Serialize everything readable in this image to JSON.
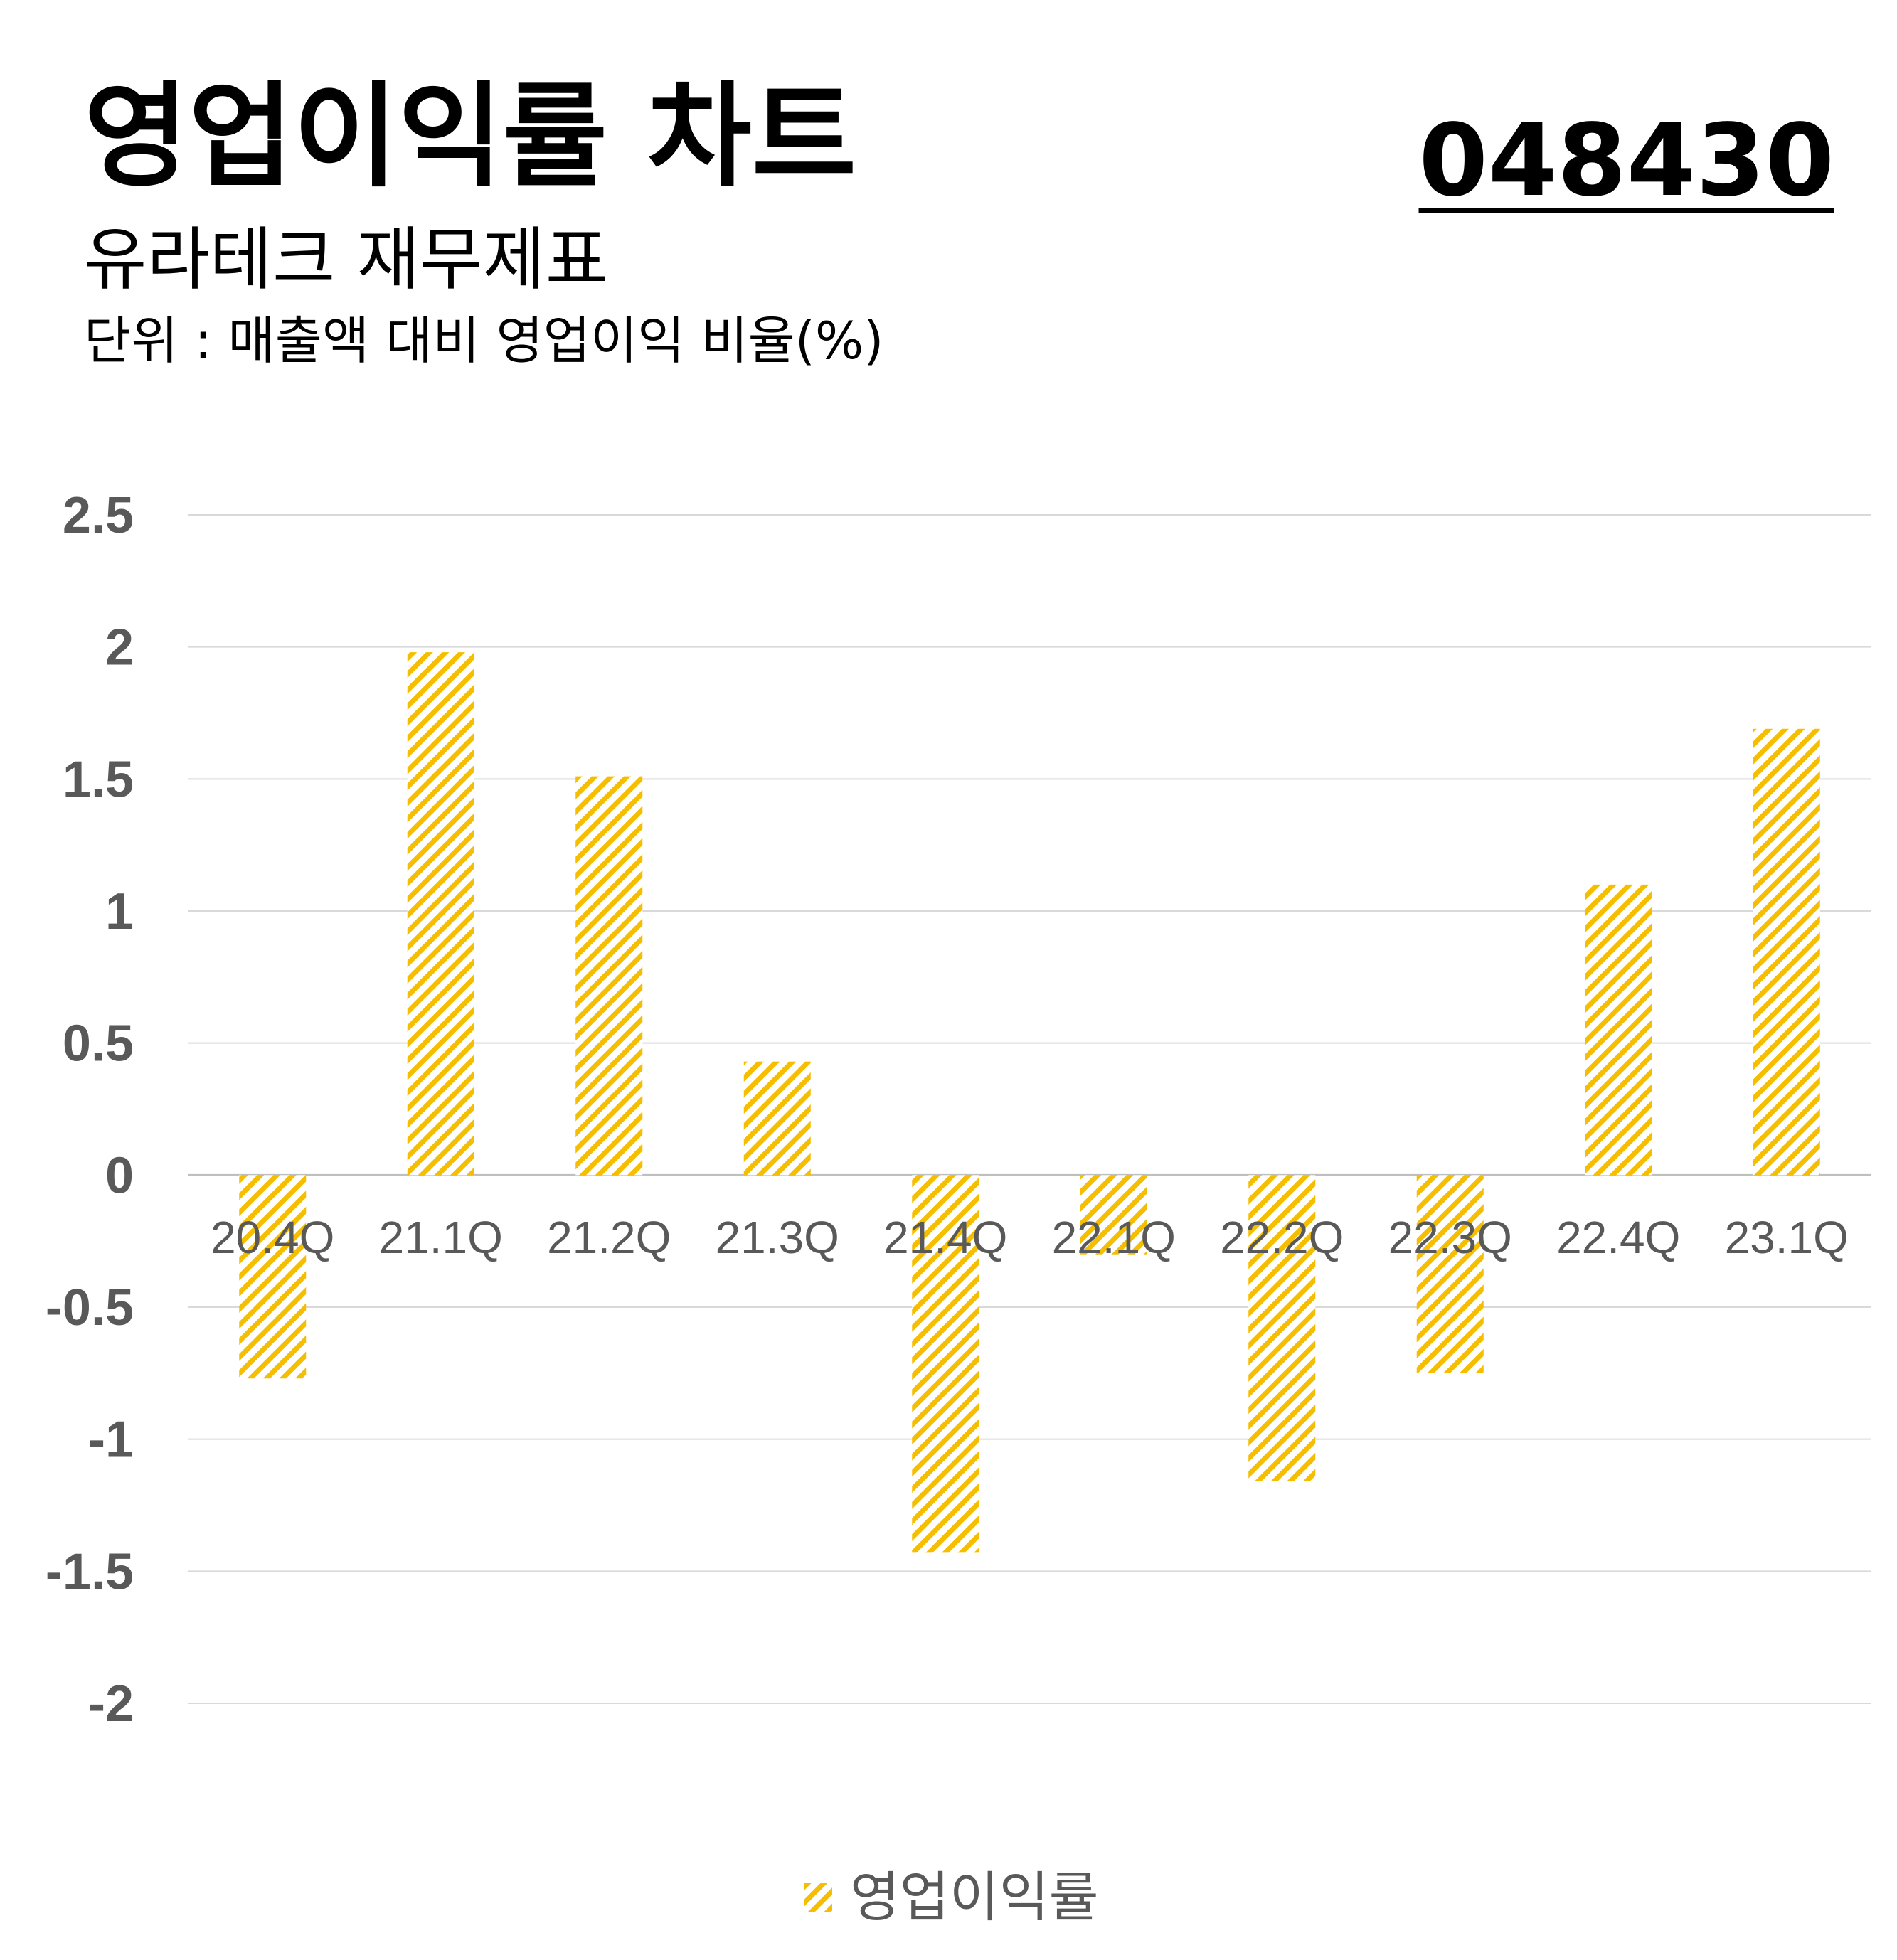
{
  "header": {
    "title": "영업이익률 차트",
    "code": "048430",
    "subtitle": "유라테크 재무제표",
    "unit": "단위 : 매출액 대비 영업이익 비율(%)"
  },
  "colors": {
    "bar": "#F5BE00",
    "grid": "#D9D9D9",
    "tick": "#595959"
  },
  "chart_data": {
    "type": "bar",
    "categories": [
      "20.4Q",
      "21.1Q",
      "21.2Q",
      "21.3Q",
      "21.4Q",
      "22.1Q",
      "22.2Q",
      "22.3Q",
      "22.4Q",
      "23.1Q"
    ],
    "series": [
      {
        "name": "영업이익률",
        "values": [
          -0.77,
          1.98,
          1.51,
          0.43,
          -1.43,
          -0.3,
          -1.16,
          -0.75,
          1.1,
          1.69
        ]
      }
    ],
    "yticks": [
      "2.5",
      "2",
      "1.5",
      "1",
      "0.5",
      "0",
      "-0.5",
      "-1",
      "-1.5",
      "-2"
    ],
    "ylim": [
      -2,
      2.5
    ],
    "grid": true,
    "legend_position": "bottom",
    "bar_pattern": "diagonal-hatch"
  }
}
